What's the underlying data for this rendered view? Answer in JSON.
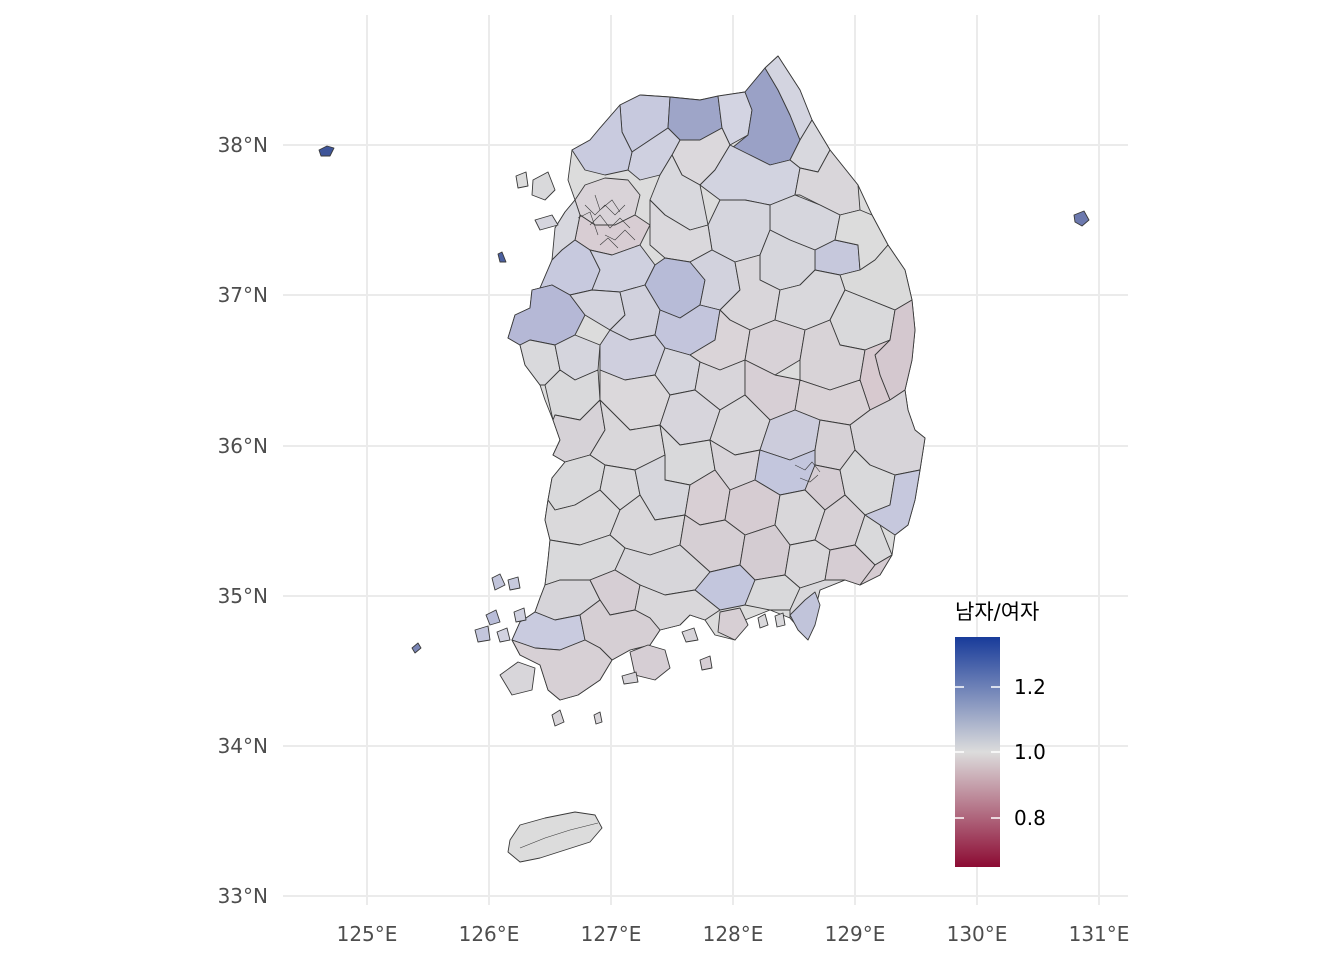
{
  "axes": {
    "x_ticks": [
      "125°E",
      "126°E",
      "127°E",
      "128°E",
      "129°E",
      "130°E",
      "131°E"
    ],
    "y_ticks": [
      "38°N",
      "37°N",
      "36°N",
      "35°N",
      "34°N",
      "33°N"
    ],
    "lon_range": [
      124.35,
      131.25
    ],
    "lat_range": [
      32.95,
      38.65
    ],
    "grid": true
  },
  "legend": {
    "title": "남자/여자",
    "labels": [
      "1.2",
      "1.0",
      "0.8"
    ],
    "placement": "bottom-right",
    "color_low": "#8c0b33",
    "color_mid": "#dcdcdc",
    "color_high": "#183b9a",
    "range": [
      0.63,
      1.36
    ]
  },
  "colors": {
    "grid": "#ebebeb",
    "region_border": "#3a3a3a",
    "neutral_fill": "#dcdcdc"
  }
}
